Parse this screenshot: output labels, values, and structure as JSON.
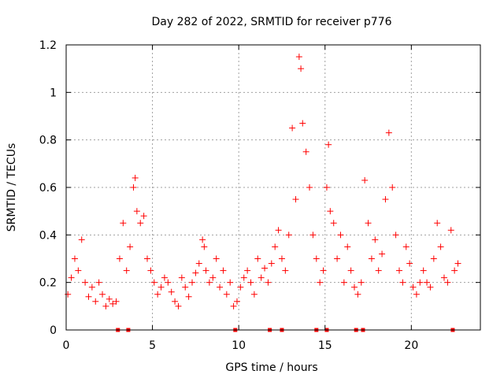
{
  "chart_data": {
    "type": "scatter",
    "title": "Day 282 of 2022, SRMTID for receiver p776",
    "xlabel": "GPS time / hours",
    "ylabel": "SRMTID / TECUs",
    "xlim": [
      0,
      24
    ],
    "ylim": [
      0,
      1.2
    ],
    "xticks": [
      0,
      5,
      10,
      15,
      20
    ],
    "xtick_labels": [
      "0",
      "5",
      "10",
      "15",
      "20"
    ],
    "yticks": [
      0,
      0.2,
      0.4,
      0.6,
      0.8,
      1.0,
      1.2
    ],
    "ytick_labels": [
      "0",
      "0.2",
      "0.4",
      "0.6",
      "0.8",
      "1",
      "1.2"
    ],
    "grid": true,
    "series": [
      {
        "name": "SRMTID",
        "marker": "+",
        "color": "#ff0000",
        "x": [
          0.1,
          0.3,
          0.5,
          0.7,
          0.9,
          1.1,
          1.3,
          1.5,
          1.7,
          1.9,
          2.1,
          2.3,
          2.5,
          2.7,
          2.9,
          3.1,
          3.3,
          3.5,
          3.7,
          3.9,
          4.0,
          4.1,
          4.3,
          4.5,
          4.7,
          4.9,
          5.1,
          5.3,
          5.5,
          5.7,
          5.9,
          6.1,
          6.3,
          6.5,
          6.7,
          6.9,
          7.1,
          7.3,
          7.5,
          7.7,
          7.9,
          8.0,
          8.1,
          8.3,
          8.5,
          8.7,
          8.9,
          9.1,
          9.3,
          9.5,
          9.7,
          9.9,
          10.1,
          10.3,
          10.5,
          10.7,
          10.9,
          11.1,
          11.3,
          11.5,
          11.7,
          11.9,
          12.1,
          12.3,
          12.5,
          12.7,
          12.9,
          13.1,
          13.3,
          13.5,
          13.6,
          13.7,
          13.9,
          14.1,
          14.3,
          14.5,
          14.7,
          14.9,
          15.1,
          15.2,
          15.3,
          15.5,
          15.7,
          15.9,
          16.1,
          16.3,
          16.5,
          16.7,
          16.9,
          17.1,
          17.3,
          17.5,
          17.7,
          17.9,
          18.1,
          18.3,
          18.5,
          18.7,
          18.9,
          19.1,
          19.3,
          19.5,
          19.7,
          19.9,
          20.1,
          20.3,
          20.5,
          20.7,
          20.9,
          21.1,
          21.3,
          21.5,
          21.7,
          21.9,
          22.1,
          22.3,
          22.5,
          22.7
        ],
        "y": [
          0.15,
          0.22,
          0.3,
          0.25,
          0.38,
          0.2,
          0.14,
          0.18,
          0.12,
          0.2,
          0.15,
          0.1,
          0.13,
          0.11,
          0.12,
          0.3,
          0.45,
          0.25,
          0.35,
          0.6,
          0.64,
          0.5,
          0.45,
          0.48,
          0.3,
          0.25,
          0.2,
          0.15,
          0.18,
          0.22,
          0.2,
          0.16,
          0.12,
          0.1,
          0.22,
          0.18,
          0.14,
          0.2,
          0.24,
          0.28,
          0.38,
          0.35,
          0.25,
          0.2,
          0.22,
          0.3,
          0.18,
          0.25,
          0.15,
          0.2,
          0.1,
          0.12,
          0.18,
          0.22,
          0.25,
          0.2,
          0.15,
          0.3,
          0.22,
          0.26,
          0.2,
          0.28,
          0.35,
          0.42,
          0.3,
          0.25,
          0.4,
          0.85,
          0.55,
          1.15,
          1.1,
          0.87,
          0.75,
          0.6,
          0.4,
          0.3,
          0.2,
          0.25,
          0.6,
          0.78,
          0.5,
          0.45,
          0.3,
          0.4,
          0.2,
          0.35,
          0.25,
          0.18,
          0.15,
          0.2,
          0.63,
          0.45,
          0.3,
          0.38,
          0.25,
          0.32,
          0.55,
          0.83,
          0.6,
          0.4,
          0.25,
          0.2,
          0.35,
          0.28,
          0.18,
          0.15,
          0.2,
          0.25,
          0.2,
          0.18,
          0.3,
          0.45,
          0.35,
          0.22,
          0.2,
          0.42,
          0.25,
          0.28
        ]
      }
    ],
    "axis_markers_x": [
      3.0,
      3.6,
      9.8,
      11.8,
      12.5,
      14.5,
      15.1,
      16.8,
      17.2,
      22.4
    ]
  }
}
